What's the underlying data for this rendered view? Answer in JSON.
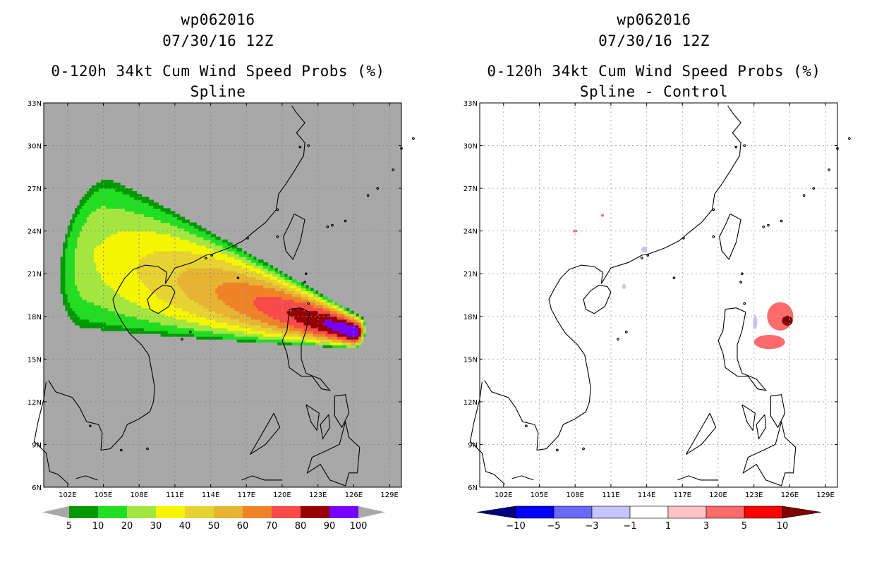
{
  "chart_data": [
    {
      "type": "heatmap",
      "storm_id": "wp062016",
      "datetime": "07/30/16 12Z",
      "title": "0-120h 34kt Cum Wind Speed Probs (%)",
      "subtitle": "Spline",
      "lon_range": [
        100,
        130
      ],
      "lat_range": [
        6,
        33
      ],
      "x_ticks": [
        "102E",
        "105E",
        "108E",
        "111E",
        "114E",
        "117E",
        "120E",
        "123E",
        "126E",
        "129E"
      ],
      "y_ticks": [
        "6N",
        "9N",
        "12N",
        "15N",
        "18N",
        "21N",
        "24N",
        "27N",
        "30N",
        "33N"
      ],
      "grid": true,
      "background": "#a8a8a8",
      "colorbar": {
        "labels": [
          "5",
          "10",
          "20",
          "30",
          "40",
          "50",
          "60",
          "70",
          "80",
          "90",
          "100"
        ],
        "colors": [
          "#009900",
          "#22dd22",
          "#a4e641",
          "#f5f500",
          "#e6d232",
          "#e6b432",
          "#f08228",
          "#fa4b4b",
          "#960000",
          "#7800ff"
        ]
      },
      "field": {
        "track_start": [
          126.2,
          16.9
        ],
        "track_end": [
          104.5,
          22.4
        ],
        "levels": [
          5,
          10,
          20,
          30,
          40,
          50,
          60,
          70,
          80,
          90
        ]
      }
    },
    {
      "type": "heatmap",
      "storm_id": "wp062016",
      "datetime": "07/30/16 12Z",
      "title": "0-120h 34kt Cum Wind Speed Probs (%)",
      "subtitle": "Spline - Control",
      "lon_range": [
        100,
        130
      ],
      "lat_range": [
        6,
        33
      ],
      "x_ticks": [
        "102E",
        "105E",
        "108E",
        "111E",
        "114E",
        "117E",
        "120E",
        "123E",
        "126E",
        "129E"
      ],
      "y_ticks": [
        "6N",
        "9N",
        "12N",
        "15N",
        "18N",
        "21N",
        "24N",
        "27N",
        "30N",
        "33N"
      ],
      "grid": true,
      "background": "#ffffff",
      "colorbar": {
        "labels": [
          "-10",
          "-5",
          "-3",
          "-1",
          "1",
          "3",
          "5",
          "10"
        ],
        "colors": [
          "#000080",
          "#0000ff",
          "#6a6aff",
          "#c4c4ff",
          "#ffffff",
          "#ffc4c4",
          "#ff6a6a",
          "#ff0000",
          "#800000"
        ]
      },
      "diff_patches": [
        {
          "lon": 125.2,
          "lat": 18.0,
          "rx": 1.1,
          "ry": 1.0,
          "value": 3
        },
        {
          "lon": 125.8,
          "lat": 17.7,
          "rx": 0.45,
          "ry": 0.35,
          "value": 10
        },
        {
          "lon": 124.3,
          "lat": 16.2,
          "rx": 1.3,
          "ry": 0.5,
          "value": 3
        },
        {
          "lon": 123.1,
          "lat": 17.6,
          "rx": 0.18,
          "ry": 0.5,
          "value": -3
        },
        {
          "lon": 113.8,
          "lat": 22.7,
          "rx": 0.25,
          "ry": 0.2,
          "value": -3
        },
        {
          "lon": 112.1,
          "lat": 20.1,
          "rx": 0.15,
          "ry": 0.18,
          "value": -3
        },
        {
          "lon": 110.3,
          "lat": 25.1,
          "rx": 0.12,
          "ry": 0.1,
          "value": 3
        },
        {
          "lon": 108.0,
          "lat": 24.0,
          "rx": 0.2,
          "ry": 0.1,
          "value": 3
        }
      ]
    }
  ]
}
